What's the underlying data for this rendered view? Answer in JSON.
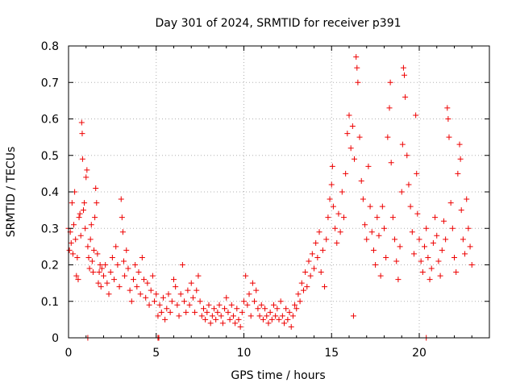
{
  "chart_data": {
    "type": "scatter",
    "title": "Day 301 of 2024, SRMTID for receiver p391",
    "xlabel": "GPS time / hours",
    "ylabel": "SRMTID / TECUs",
    "xlim": [
      0,
      24
    ],
    "ylim": [
      0,
      0.8
    ],
    "xticks": [
      0,
      5,
      10,
      15,
      20
    ],
    "xtick_labels": [
      "0",
      "5",
      "10",
      "15",
      "20"
    ],
    "yticks": [
      0,
      0.1,
      0.2,
      0.3,
      0.4,
      0.5,
      0.6,
      0.7,
      0.8
    ],
    "ytick_labels": [
      "0",
      "0.1",
      "0.2",
      "0.3",
      "0.4",
      "0.5",
      "0.6",
      "0.7",
      "0.8"
    ],
    "grid": true,
    "marker": "plus",
    "color": "#ee0000",
    "series": [
      {
        "name": "SRMTID",
        "points": [
          [
            0.0,
            0.3
          ],
          [
            0.05,
            0.24
          ],
          [
            0.1,
            0.29
          ],
          [
            0.15,
            0.26
          ],
          [
            0.2,
            0.37
          ],
          [
            0.25,
            0.23
          ],
          [
            0.3,
            0.31
          ],
          [
            0.35,
            0.4
          ],
          [
            0.4,
            0.27
          ],
          [
            0.45,
            0.17
          ],
          [
            0.5,
            0.22
          ],
          [
            0.55,
            0.16
          ],
          [
            0.6,
            0.33
          ],
          [
            0.65,
            0.34
          ],
          [
            0.7,
            0.28
          ],
          [
            0.75,
            0.59
          ],
          [
            0.78,
            0.56
          ],
          [
            0.8,
            0.49
          ],
          [
            0.85,
            0.35
          ],
          [
            0.9,
            0.37
          ],
          [
            0.95,
            0.3
          ],
          [
            1.0,
            0.44
          ],
          [
            1.05,
            0.46
          ],
          [
            1.1,
            0.25
          ],
          [
            1.15,
            0.22
          ],
          [
            1.2,
            0.19
          ],
          [
            1.25,
            0.27
          ],
          [
            1.3,
            0.31
          ],
          [
            1.35,
            0.21
          ],
          [
            1.4,
            0.18
          ],
          [
            1.45,
            0.24
          ],
          [
            1.5,
            0.33
          ],
          [
            1.55,
            0.41
          ],
          [
            1.6,
            0.37
          ],
          [
            1.65,
            0.23
          ],
          [
            1.7,
            0.15
          ],
          [
            1.75,
            0.18
          ],
          [
            1.8,
            0.2
          ],
          [
            1.85,
            0.14
          ],
          [
            1.9,
            0.19
          ],
          [
            2.0,
            0.17
          ],
          [
            2.1,
            0.2
          ],
          [
            2.2,
            0.15
          ],
          [
            2.3,
            0.12
          ],
          [
            2.4,
            0.18
          ],
          [
            2.5,
            0.22
          ],
          [
            2.6,
            0.16
          ],
          [
            2.7,
            0.25
          ],
          [
            2.8,
            0.2
          ],
          [
            2.9,
            0.14
          ],
          [
            3.0,
            0.38
          ],
          [
            3.05,
            0.33
          ],
          [
            3.1,
            0.29
          ],
          [
            3.15,
            0.21
          ],
          [
            3.2,
            0.17
          ],
          [
            3.3,
            0.24
          ],
          [
            3.4,
            0.19
          ],
          [
            3.5,
            0.13
          ],
          [
            3.6,
            0.1
          ],
          [
            3.7,
            0.16
          ],
          [
            3.8,
            0.2
          ],
          [
            3.9,
            0.14
          ],
          [
            4.0,
            0.18
          ],
          [
            4.1,
            0.12
          ],
          [
            4.2,
            0.22
          ],
          [
            4.3,
            0.16
          ],
          [
            4.4,
            0.11
          ],
          [
            4.5,
            0.15
          ],
          [
            4.6,
            0.09
          ],
          [
            4.7,
            0.13
          ],
          [
            4.8,
            0.17
          ],
          [
            4.9,
            0.1
          ],
          [
            5.0,
            0.12
          ],
          [
            5.1,
            0.06
          ],
          [
            5.2,
            0.09
          ],
          [
            5.3,
            0.07
          ],
          [
            5.4,
            0.11
          ],
          [
            5.5,
            0.05
          ],
          [
            5.6,
            0.08
          ],
          [
            5.7,
            0.12
          ],
          [
            5.8,
            0.07
          ],
          [
            5.9,
            0.1
          ],
          [
            6.0,
            0.16
          ],
          [
            6.1,
            0.14
          ],
          [
            6.2,
            0.09
          ],
          [
            6.3,
            0.06
          ],
          [
            6.4,
            0.12
          ],
          [
            6.5,
            0.2
          ],
          [
            6.6,
            0.1
          ],
          [
            6.7,
            0.07
          ],
          [
            6.8,
            0.13
          ],
          [
            6.9,
            0.09
          ],
          [
            7.0,
            0.15
          ],
          [
            7.1,
            0.11
          ],
          [
            7.2,
            0.07
          ],
          [
            7.3,
            0.13
          ],
          [
            7.4,
            0.17
          ],
          [
            7.5,
            0.1
          ],
          [
            7.6,
            0.06
          ],
          [
            7.7,
            0.08
          ],
          [
            7.8,
            0.05
          ],
          [
            7.9,
            0.07
          ],
          [
            8.0,
            0.09
          ],
          [
            8.1,
            0.04
          ],
          [
            8.2,
            0.06
          ],
          [
            8.3,
            0.08
          ],
          [
            8.4,
            0.05
          ],
          [
            8.5,
            0.07
          ],
          [
            8.6,
            0.09
          ],
          [
            8.7,
            0.06
          ],
          [
            8.8,
            0.04
          ],
          [
            8.9,
            0.08
          ],
          [
            9.0,
            0.11
          ],
          [
            9.1,
            0.07
          ],
          [
            9.2,
            0.05
          ],
          [
            9.3,
            0.09
          ],
          [
            9.4,
            0.06
          ],
          [
            9.5,
            0.04
          ],
          [
            9.6,
            0.08
          ],
          [
            9.7,
            0.05
          ],
          [
            9.8,
            0.03
          ],
          [
            9.9,
            0.07
          ],
          [
            10.0,
            0.1
          ],
          [
            10.1,
            0.17
          ],
          [
            10.2,
            0.09
          ],
          [
            10.3,
            0.12
          ],
          [
            10.4,
            0.06
          ],
          [
            10.5,
            0.15
          ],
          [
            10.6,
            0.1
          ],
          [
            10.7,
            0.13
          ],
          [
            10.8,
            0.08
          ],
          [
            10.9,
            0.06
          ],
          [
            11.0,
            0.09
          ],
          [
            11.1,
            0.05
          ],
          [
            11.2,
            0.08
          ],
          [
            11.3,
            0.06
          ],
          [
            11.4,
            0.04
          ],
          [
            11.5,
            0.07
          ],
          [
            11.6,
            0.05
          ],
          [
            11.7,
            0.09
          ],
          [
            11.8,
            0.06
          ],
          [
            11.9,
            0.08
          ],
          [
            12.0,
            0.05
          ],
          [
            12.1,
            0.1
          ],
          [
            12.2,
            0.06
          ],
          [
            12.3,
            0.04
          ],
          [
            12.4,
            0.08
          ],
          [
            12.5,
            0.05
          ],
          [
            12.6,
            0.07
          ],
          [
            12.7,
            0.03
          ],
          [
            12.8,
            0.06
          ],
          [
            12.9,
            0.09
          ],
          [
            13.0,
            0.08
          ],
          [
            13.1,
            0.12
          ],
          [
            13.2,
            0.1
          ],
          [
            13.3,
            0.15
          ],
          [
            13.4,
            0.13
          ],
          [
            13.5,
            0.18
          ],
          [
            13.6,
            0.14
          ],
          [
            13.7,
            0.21
          ],
          [
            13.8,
            0.17
          ],
          [
            13.9,
            0.23
          ],
          [
            14.0,
            0.19
          ],
          [
            14.1,
            0.26
          ],
          [
            14.2,
            0.22
          ],
          [
            14.3,
            0.29
          ],
          [
            14.4,
            0.18
          ],
          [
            14.5,
            0.24
          ],
          [
            14.6,
            0.14
          ],
          [
            14.7,
            0.27
          ],
          [
            14.8,
            0.33
          ],
          [
            14.9,
            0.38
          ],
          [
            15.0,
            0.42
          ],
          [
            15.05,
            0.47
          ],
          [
            15.1,
            0.36
          ],
          [
            15.2,
            0.3
          ],
          [
            15.3,
            0.26
          ],
          [
            15.4,
            0.34
          ],
          [
            15.5,
            0.29
          ],
          [
            15.6,
            0.4
          ],
          [
            15.7,
            0.33
          ],
          [
            15.8,
            0.45
          ],
          [
            15.9,
            0.56
          ],
          [
            16.0,
            0.61
          ],
          [
            16.1,
            0.52
          ],
          [
            16.2,
            0.58
          ],
          [
            16.25,
            0.06
          ],
          [
            16.3,
            0.49
          ],
          [
            16.4,
            0.77
          ],
          [
            16.45,
            0.74
          ],
          [
            16.5,
            0.7
          ],
          [
            16.6,
            0.55
          ],
          [
            16.7,
            0.43
          ],
          [
            16.8,
            0.38
          ],
          [
            16.9,
            0.31
          ],
          [
            17.0,
            0.27
          ],
          [
            17.1,
            0.47
          ],
          [
            17.2,
            0.36
          ],
          [
            17.3,
            0.29
          ],
          [
            17.4,
            0.24
          ],
          [
            17.5,
            0.2
          ],
          [
            17.6,
            0.33
          ],
          [
            17.7,
            0.28
          ],
          [
            17.8,
            0.17
          ],
          [
            17.9,
            0.36
          ],
          [
            18.0,
            0.3
          ],
          [
            18.1,
            0.22
          ],
          [
            18.2,
            0.55
          ],
          [
            18.3,
            0.63
          ],
          [
            18.35,
            0.7
          ],
          [
            18.4,
            0.48
          ],
          [
            18.5,
            0.33
          ],
          [
            18.6,
            0.27
          ],
          [
            18.7,
            0.21
          ],
          [
            18.8,
            0.16
          ],
          [
            18.9,
            0.25
          ],
          [
            19.0,
            0.4
          ],
          [
            19.05,
            0.53
          ],
          [
            19.1,
            0.74
          ],
          [
            19.15,
            0.72
          ],
          [
            19.2,
            0.66
          ],
          [
            19.3,
            0.5
          ],
          [
            19.4,
            0.42
          ],
          [
            19.5,
            0.36
          ],
          [
            19.6,
            0.29
          ],
          [
            19.7,
            0.23
          ],
          [
            19.8,
            0.61
          ],
          [
            19.85,
            0.45
          ],
          [
            19.9,
            0.34
          ],
          [
            20.0,
            0.27
          ],
          [
            20.1,
            0.21
          ],
          [
            20.2,
            0.18
          ],
          [
            20.3,
            0.25
          ],
          [
            20.4,
            0.3
          ],
          [
            20.5,
            0.22
          ],
          [
            20.6,
            0.16
          ],
          [
            20.7,
            0.19
          ],
          [
            20.8,
            0.26
          ],
          [
            20.9,
            0.33
          ],
          [
            21.0,
            0.28
          ],
          [
            21.1,
            0.21
          ],
          [
            21.2,
            0.17
          ],
          [
            21.3,
            0.24
          ],
          [
            21.4,
            0.32
          ],
          [
            21.5,
            0.27
          ],
          [
            21.6,
            0.63
          ],
          [
            21.65,
            0.6
          ],
          [
            21.7,
            0.55
          ],
          [
            21.8,
            0.37
          ],
          [
            21.9,
            0.3
          ],
          [
            22.0,
            0.22
          ],
          [
            22.1,
            0.18
          ],
          [
            22.2,
            0.45
          ],
          [
            22.3,
            0.53
          ],
          [
            22.35,
            0.49
          ],
          [
            22.4,
            0.35
          ],
          [
            22.5,
            0.27
          ],
          [
            22.6,
            0.23
          ],
          [
            22.7,
            0.38
          ],
          [
            22.8,
            0.3
          ],
          [
            22.9,
            0.25
          ],
          [
            23.0,
            0.2
          ],
          [
            1.1,
            0.0
          ],
          [
            5.1,
            0.0
          ],
          [
            5.15,
            0.0
          ],
          [
            20.4,
            0.0
          ]
        ]
      }
    ]
  }
}
